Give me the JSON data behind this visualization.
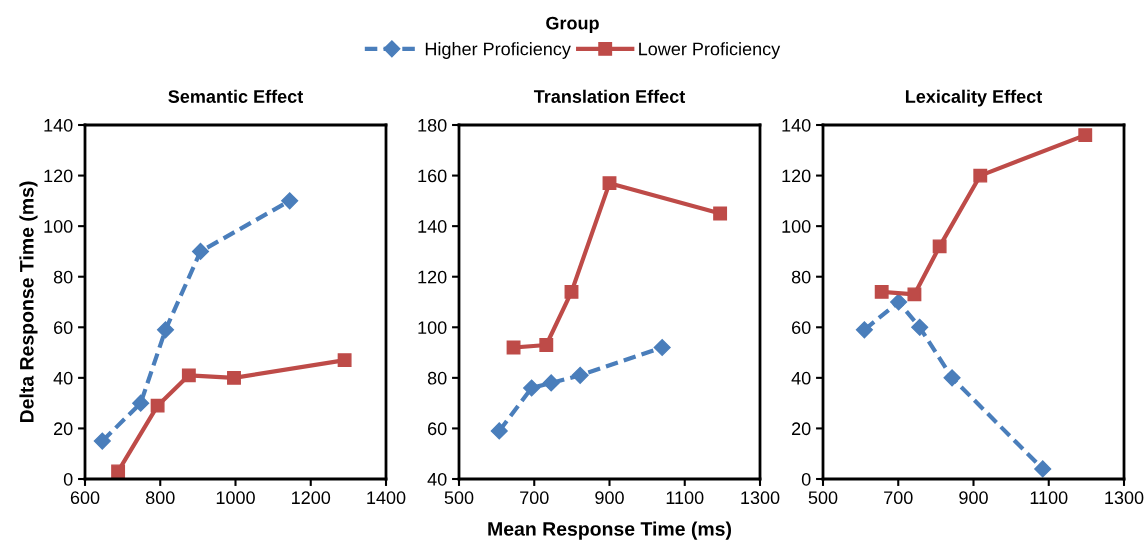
{
  "chart_data": [
    {
      "type": "line",
      "title": "Semantic Effect",
      "ylabel": "Delta Response Time (ms)",
      "legend": "top",
      "legend_title": "Group",
      "xlim": [
        600,
        1400
      ],
      "xticks": [
        600,
        800,
        1000,
        1200,
        1400
      ],
      "ylim": [
        0,
        140
      ],
      "yticks": [
        0,
        20,
        40,
        60,
        80,
        100,
        120,
        140
      ],
      "grid": false,
      "series": [
        {
          "name": "Higher Proficiency",
          "color": "#4a7ebb",
          "marker": "diamond",
          "line_style": "dashed",
          "x": [
            646,
            748,
            814,
            907,
            1144
          ],
          "values": [
            15,
            30,
            59,
            90,
            110
          ]
        },
        {
          "name": "Lower Proficiency",
          "color": "#be4b48",
          "marker": "square",
          "line_style": "solid",
          "x": [
            688,
            793,
            876,
            996,
            1290
          ],
          "values": [
            3,
            29,
            41,
            40,
            47
          ]
        }
      ]
    },
    {
      "type": "line",
      "title": "Translation Effect",
      "xlabel": "Mean Response Time (ms)",
      "xlim": [
        500,
        1300
      ],
      "xticks": [
        500,
        700,
        900,
        1100,
        1300
      ],
      "ylim": [
        40,
        180
      ],
      "yticks": [
        40,
        60,
        80,
        100,
        120,
        140,
        160,
        180
      ],
      "grid": false,
      "series": [
        {
          "name": "Higher Proficiency",
          "color": "#4a7ebb",
          "marker": "diamond",
          "line_style": "dashed",
          "x": [
            607,
            693,
            745,
            822,
            1040
          ],
          "values": [
            59,
            76,
            78,
            81,
            92
          ]
        },
        {
          "name": "Lower Proficiency",
          "color": "#be4b48",
          "marker": "square",
          "line_style": "solid",
          "x": [
            645,
            732,
            799,
            900,
            1194
          ],
          "values": [
            92,
            93,
            114,
            157,
            145
          ]
        }
      ]
    },
    {
      "type": "line",
      "title": "Lexicality Effect",
      "xlim": [
        500,
        1300
      ],
      "xticks": [
        500,
        700,
        900,
        1100,
        1300
      ],
      "ylim": [
        0,
        140
      ],
      "yticks": [
        0,
        20,
        40,
        60,
        80,
        100,
        120,
        140
      ],
      "grid": false,
      "series": [
        {
          "name": "Higher Proficiency",
          "color": "#4a7ebb",
          "marker": "diamond",
          "line_style": "dashed",
          "x": [
            610,
            701,
            757,
            843,
            1084
          ],
          "values": [
            59,
            70,
            60,
            40,
            4
          ]
        },
        {
          "name": "Lower Proficiency",
          "color": "#be4b48",
          "marker": "square",
          "line_style": "solid",
          "x": [
            656,
            743,
            810,
            918,
            1197
          ],
          "values": [
            74,
            73,
            92,
            120,
            136
          ]
        }
      ]
    }
  ]
}
